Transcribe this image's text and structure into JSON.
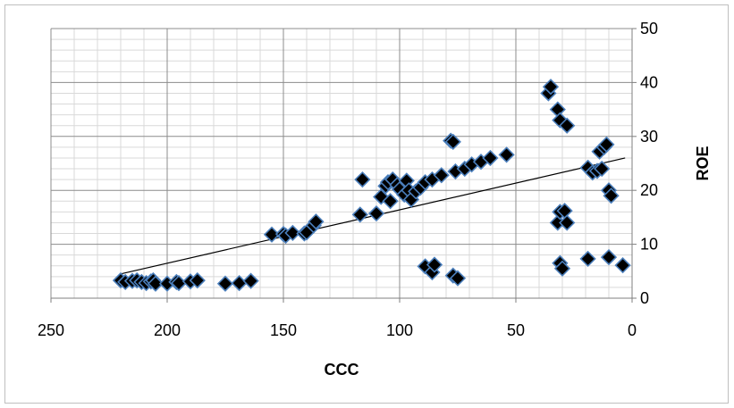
{
  "chart_data": {
    "type": "scatter",
    "xlabel": "CCC",
    "ylabel": "ROE",
    "xlim": [
      0,
      250
    ],
    "ylim": [
      0,
      50
    ],
    "x_reversed": true,
    "y_axis_side": "right",
    "x_ticks": [
      "250",
      "200",
      "150",
      "100",
      "50",
      "0"
    ],
    "y_ticks": [
      "0",
      "10",
      "20",
      "30",
      "40",
      "50"
    ],
    "grid": "major and minor",
    "legend": "none",
    "marker": "diamond",
    "marker_fill": "#000000",
    "marker_edge": "#4a7ebb",
    "trendline": {
      "type": "linear",
      "x": [
        220,
        3
      ],
      "y": [
        4.5,
        26
      ]
    },
    "points": [
      {
        "x": 220,
        "y": 3.3
      },
      {
        "x": 218,
        "y": 3.0
      },
      {
        "x": 215,
        "y": 3.2
      },
      {
        "x": 213,
        "y": 3.3
      },
      {
        "x": 211,
        "y": 3.0
      },
      {
        "x": 209,
        "y": 2.8
      },
      {
        "x": 207,
        "y": 3.1
      },
      {
        "x": 206,
        "y": 3.3
      },
      {
        "x": 205,
        "y": 2.7
      },
      {
        "x": 200,
        "y": 2.7
      },
      {
        "x": 196,
        "y": 3.0
      },
      {
        "x": 195,
        "y": 2.8
      },
      {
        "x": 190,
        "y": 3.1
      },
      {
        "x": 187,
        "y": 3.3
      },
      {
        "x": 175,
        "y": 2.7
      },
      {
        "x": 169,
        "y": 2.8
      },
      {
        "x": 164,
        "y": 3.2
      },
      {
        "x": 155,
        "y": 11.8
      },
      {
        "x": 150,
        "y": 11.9
      },
      {
        "x": 149,
        "y": 11.6
      },
      {
        "x": 146,
        "y": 12.1
      },
      {
        "x": 141,
        "y": 12.0
      },
      {
        "x": 140,
        "y": 12.2
      },
      {
        "x": 137,
        "y": 13.5
      },
      {
        "x": 136,
        "y": 14.2
      },
      {
        "x": 117,
        "y": 15.5
      },
      {
        "x": 116,
        "y": 22.0
      },
      {
        "x": 110,
        "y": 15.7
      },
      {
        "x": 108,
        "y": 18.8
      },
      {
        "x": 106,
        "y": 20.8
      },
      {
        "x": 105,
        "y": 21.5
      },
      {
        "x": 104,
        "y": 18.0
      },
      {
        "x": 103,
        "y": 22.0
      },
      {
        "x": 101,
        "y": 21.0
      },
      {
        "x": 100,
        "y": 20.2
      },
      {
        "x": 98,
        "y": 19.2
      },
      {
        "x": 97,
        "y": 21.8
      },
      {
        "x": 96,
        "y": 20.0
      },
      {
        "x": 95,
        "y": 18.3
      },
      {
        "x": 93,
        "y": 19.8
      },
      {
        "x": 91,
        "y": 20.5
      },
      {
        "x": 89,
        "y": 21.5
      },
      {
        "x": 86,
        "y": 22.0
      },
      {
        "x": 82,
        "y": 22.8
      },
      {
        "x": 78,
        "y": 29.2
      },
      {
        "x": 77,
        "y": 29.0
      },
      {
        "x": 76,
        "y": 23.5
      },
      {
        "x": 72,
        "y": 24.0
      },
      {
        "x": 69,
        "y": 24.8
      },
      {
        "x": 65,
        "y": 25.3
      },
      {
        "x": 61,
        "y": 26.0
      },
      {
        "x": 54,
        "y": 26.6
      },
      {
        "x": 89,
        "y": 5.9
      },
      {
        "x": 86,
        "y": 4.8
      },
      {
        "x": 85,
        "y": 6.2
      },
      {
        "x": 77,
        "y": 4.2
      },
      {
        "x": 75,
        "y": 3.7
      },
      {
        "x": 36,
        "y": 38.0
      },
      {
        "x": 35,
        "y": 39.2
      },
      {
        "x": 32,
        "y": 35.0
      },
      {
        "x": 31,
        "y": 33.0
      },
      {
        "x": 28,
        "y": 32.0
      },
      {
        "x": 32,
        "y": 14.0
      },
      {
        "x": 31,
        "y": 16.0
      },
      {
        "x": 29,
        "y": 16.2
      },
      {
        "x": 28,
        "y": 14.0
      },
      {
        "x": 31,
        "y": 6.5
      },
      {
        "x": 30,
        "y": 5.5
      },
      {
        "x": 19,
        "y": 7.3
      },
      {
        "x": 10,
        "y": 7.6
      },
      {
        "x": 4,
        "y": 6.1
      },
      {
        "x": 19,
        "y": 24.2
      },
      {
        "x": 17,
        "y": 23.3
      },
      {
        "x": 15,
        "y": 23.6
      },
      {
        "x": 14,
        "y": 27.2
      },
      {
        "x": 13,
        "y": 24.0
      },
      {
        "x": 12,
        "y": 28.0
      },
      {
        "x": 11,
        "y": 28.5
      },
      {
        "x": 10,
        "y": 20.0
      },
      {
        "x": 9,
        "y": 19.0
      }
    ]
  }
}
